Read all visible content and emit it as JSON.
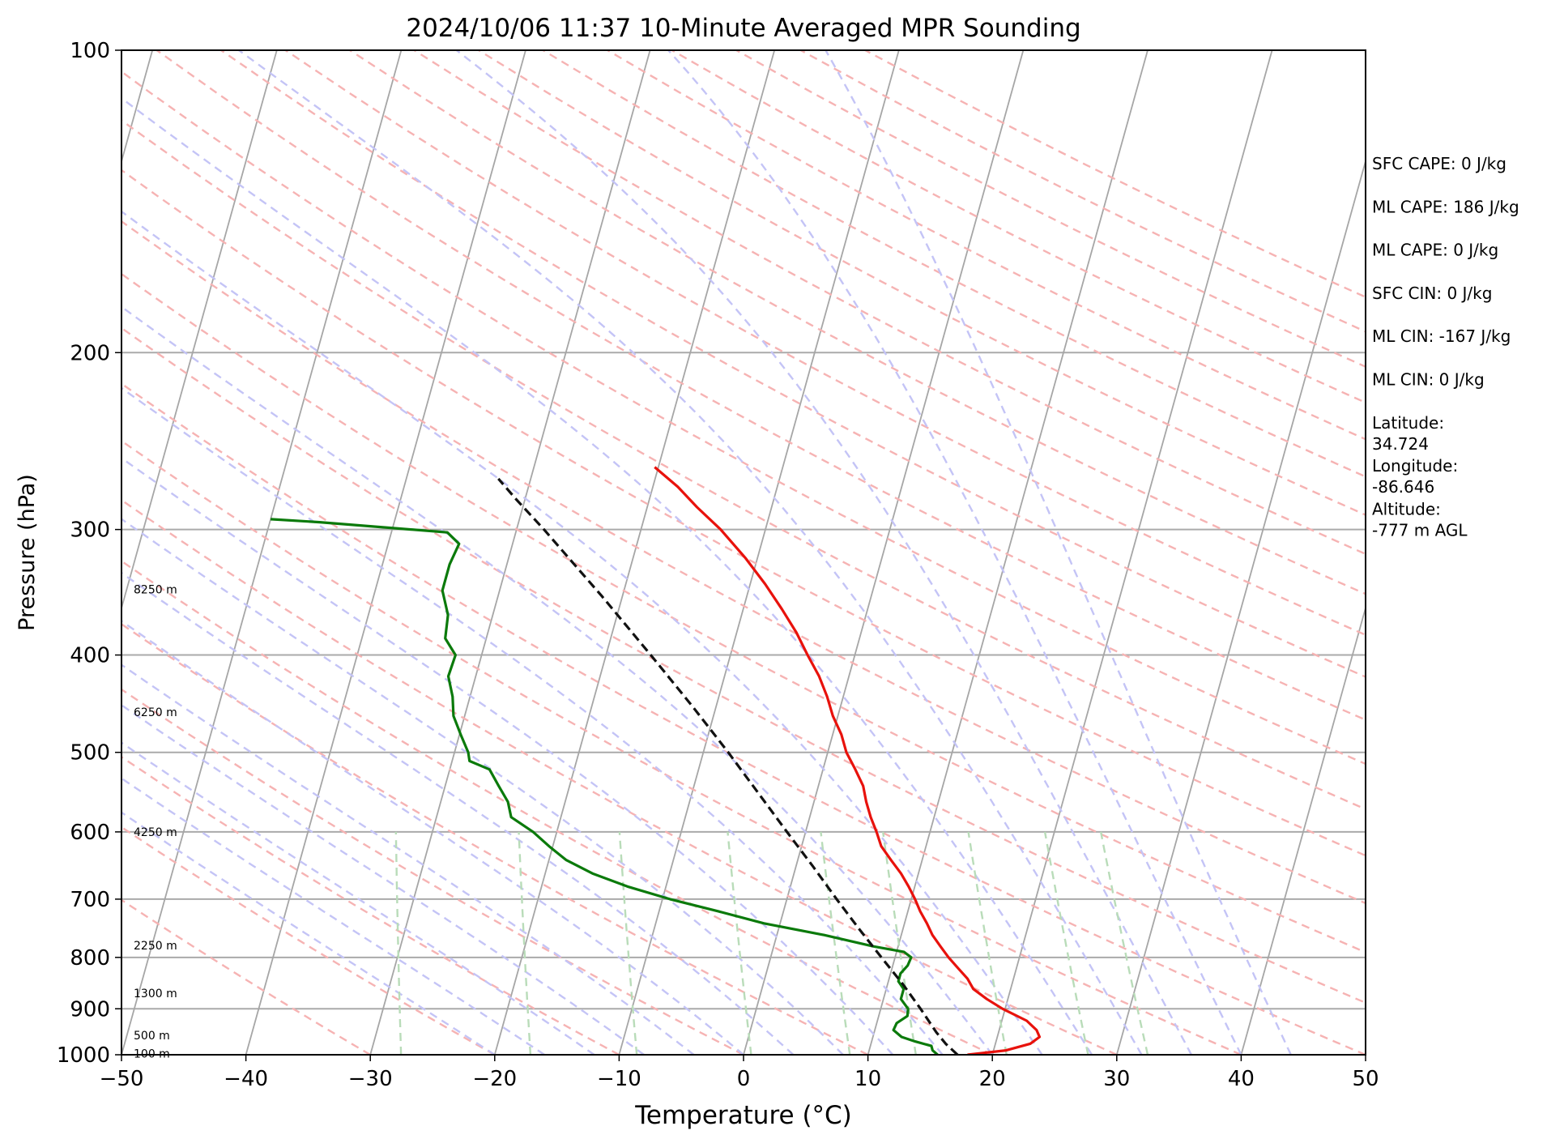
{
  "chart_data": {
    "type": "skew-t sounding",
    "title": "2024/10/06 11:37 10-Minute Averaged MPR Sounding",
    "xlabel": "Temperature (°C)",
    "ylabel": "Pressure (hPa)",
    "x_range": [
      -50,
      50
    ],
    "y_range_hpa": [
      1000,
      100
    ],
    "y_scale": "log",
    "x_ticks": [
      "−50",
      "−40",
      "−30",
      "−20",
      "−10",
      "0",
      "10",
      "20",
      "30",
      "40",
      "50"
    ],
    "x_tick_values": [
      -50,
      -40,
      -30,
      -20,
      -10,
      0,
      10,
      20,
      30,
      40,
      50
    ],
    "y_ticks": [
      "100",
      "200",
      "300",
      "400",
      "500",
      "600",
      "700",
      "800",
      "900",
      "1000"
    ],
    "y_tick_values": [
      100,
      200,
      300,
      400,
      500,
      600,
      700,
      800,
      900,
      1000
    ],
    "grid": true,
    "height_labels": [
      {
        "text": "8250 m",
        "p": 344
      },
      {
        "text": "6250 m",
        "p": 456
      },
      {
        "text": "4250 m",
        "p": 600
      },
      {
        "text": "2250 m",
        "p": 778
      },
      {
        "text": "1300 m",
        "p": 868
      },
      {
        "text": "500 m",
        "p": 956
      },
      {
        "text": "100 m",
        "p": 997
      }
    ],
    "stats": [
      {
        "line1": "SFC CAPE: 0 J/kg",
        "line2": ""
      },
      {
        "line1": "ML CAPE: 186 J/kg",
        "line2": ""
      },
      {
        "line1": "ML CAPE: 0 J/kg",
        "line2": ""
      },
      {
        "line1": "SFC CIN: 0 J/kg",
        "line2": ""
      },
      {
        "line1": "ML CIN: -167 J/kg",
        "line2": ""
      },
      {
        "line1": "ML CIN: 0 J/kg",
        "line2": ""
      },
      {
        "line1": "Latitude:",
        "line2": "34.724"
      },
      {
        "line1": "Longitude:",
        "line2": "-86.646"
      },
      {
        "line1": "Altitude:",
        "line2": "-777 m AGL"
      }
    ],
    "series": [
      {
        "kind": "temperature",
        "color": "#e8120c",
        "points": [
          [
            1000,
            18.0
          ],
          [
            990,
            21.0
          ],
          [
            975,
            22.8
          ],
          [
            960,
            23.4
          ],
          [
            945,
            23.0
          ],
          [
            925,
            22.0
          ],
          [
            900,
            19.8
          ],
          [
            880,
            18.3
          ],
          [
            860,
            17.0
          ],
          [
            840,
            16.3
          ],
          [
            820,
            15.3
          ],
          [
            800,
            14.3
          ],
          [
            780,
            13.4
          ],
          [
            760,
            12.5
          ],
          [
            740,
            11.8
          ],
          [
            720,
            11.0
          ],
          [
            700,
            10.3
          ],
          [
            680,
            9.5
          ],
          [
            660,
            8.6
          ],
          [
            640,
            7.5
          ],
          [
            620,
            6.4
          ],
          [
            600,
            5.7
          ],
          [
            580,
            4.9
          ],
          [
            560,
            4.2
          ],
          [
            540,
            3.6
          ],
          [
            520,
            2.6
          ],
          [
            500,
            1.5
          ],
          [
            480,
            0.7
          ],
          [
            460,
            -0.4
          ],
          [
            440,
            -1.3
          ],
          [
            420,
            -2.4
          ],
          [
            400,
            -3.8
          ],
          [
            380,
            -5.2
          ],
          [
            360,
            -6.9
          ],
          [
            340,
            -8.8
          ],
          [
            320,
            -11.0
          ],
          [
            300,
            -13.6
          ],
          [
            285,
            -16.0
          ],
          [
            272,
            -18.0
          ],
          [
            260,
            -20.3
          ]
        ]
      },
      {
        "kind": "dewpoint",
        "color": "#0b7a0b",
        "points": [
          [
            1000,
            15.6
          ],
          [
            990,
            15.1
          ],
          [
            980,
            14.9
          ],
          [
            970,
            13.5
          ],
          [
            960,
            12.3
          ],
          [
            945,
            11.5
          ],
          [
            930,
            11.6
          ],
          [
            915,
            12.3
          ],
          [
            900,
            12.2
          ],
          [
            880,
            11.4
          ],
          [
            860,
            11.4
          ],
          [
            845,
            10.8
          ],
          [
            830,
            10.8
          ],
          [
            815,
            11.2
          ],
          [
            800,
            11.3
          ],
          [
            790,
            10.6
          ],
          [
            780,
            8.0
          ],
          [
            760,
            3.8
          ],
          [
            740,
            -1.3
          ],
          [
            720,
            -5.2
          ],
          [
            700,
            -9.4
          ],
          [
            680,
            -13.1
          ],
          [
            660,
            -16.2
          ],
          [
            640,
            -18.6
          ],
          [
            620,
            -20.3
          ],
          [
            600,
            -21.9
          ],
          [
            580,
            -24.0
          ],
          [
            560,
            -24.6
          ],
          [
            540,
            -25.7
          ],
          [
            520,
            -26.8
          ],
          [
            510,
            -28.6
          ],
          [
            500,
            -28.9
          ],
          [
            480,
            -29.9
          ],
          [
            460,
            -30.9
          ],
          [
            440,
            -31.4
          ],
          [
            420,
            -32.2
          ],
          [
            400,
            -32.1
          ],
          [
            385,
            -33.3
          ],
          [
            365,
            -33.6
          ],
          [
            345,
            -34.6
          ],
          [
            325,
            -34.6
          ],
          [
            310,
            -34.3
          ],
          [
            302,
            -35.5
          ],
          [
            295,
            -46.0
          ],
          [
            293,
            -50.0
          ]
        ]
      },
      {
        "kind": "parcel",
        "color": "#111111",
        "points": [
          [
            1000,
            17.2
          ],
          [
            975,
            16.0
          ],
          [
            950,
            15.0
          ],
          [
            900,
            13.2
          ],
          [
            850,
            11.2
          ],
          [
            800,
            8.9
          ],
          [
            750,
            6.5
          ],
          [
            700,
            4.0
          ],
          [
            650,
            1.4
          ],
          [
            600,
            -1.5
          ],
          [
            550,
            -4.6
          ],
          [
            500,
            -8.0
          ],
          [
            450,
            -11.9
          ],
          [
            400,
            -16.4
          ],
          [
            350,
            -21.6
          ],
          [
            300,
            -27.8
          ],
          [
            280,
            -30.7
          ],
          [
            267,
            -32.6
          ]
        ]
      }
    ]
  }
}
